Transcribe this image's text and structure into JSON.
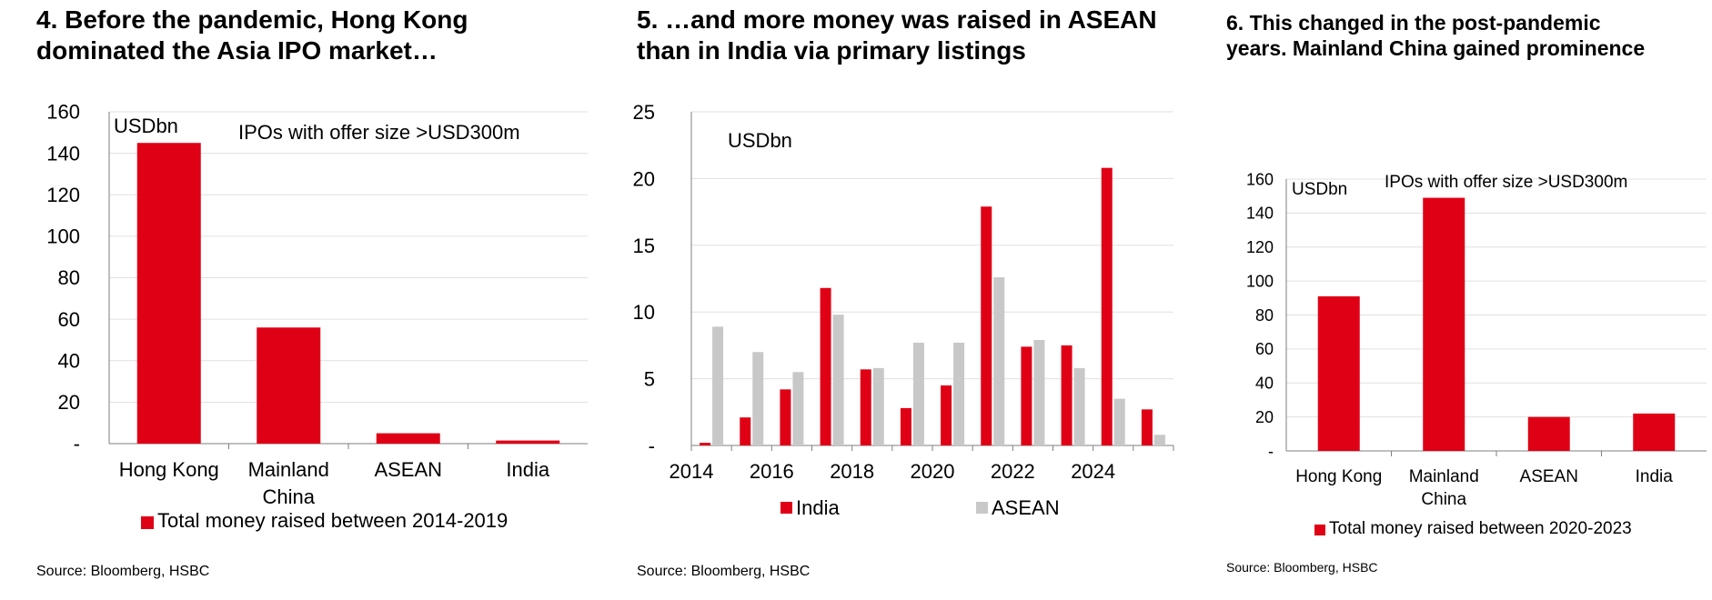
{
  "colors": {
    "red": "#e00016",
    "grey": "#c8c8c8",
    "grid": "#e0e0e0",
    "axis": "#7f7f7f"
  },
  "chart_data": [
    {
      "type": "bar",
      "title_line1": "4. Before the pandemic, Hong Kong",
      "title_line2": "dominated the Asia IPO market…",
      "unit_label": "USDbn",
      "annotation": "IPOs with offer size >USD300m",
      "categories": [
        "Hong Kong",
        "Mainland China",
        "ASEAN",
        "India"
      ],
      "series": [
        {
          "name": "Total money raised between 2014-2019",
          "values": [
            145,
            56,
            5,
            1.5
          ]
        }
      ],
      "yticks": [
        "-",
        "20",
        "40",
        "60",
        "80",
        "100",
        "120",
        "140",
        "160"
      ],
      "ylim": [
        0,
        160
      ],
      "grid": true,
      "legend": "bottom",
      "source": "Source: Bloomberg, HSBC"
    },
    {
      "type": "bar",
      "title_line1": "5. …and more money was raised in ASEAN",
      "title_line2": "than in India via primary listings",
      "unit_label": "USDbn",
      "x": [
        2014,
        2015,
        2016,
        2017,
        2018,
        2019,
        2020,
        2021,
        2022,
        2023,
        2024,
        2025
      ],
      "xticks": [
        "2014",
        "2016",
        "2018",
        "2020",
        "2022",
        "2024"
      ],
      "series": [
        {
          "name": "India",
          "values": [
            0.2,
            2.1,
            4.2,
            11.8,
            5.7,
            2.8,
            4.5,
            17.9,
            7.4,
            7.5,
            20.8,
            2.7
          ]
        },
        {
          "name": "ASEAN",
          "values": [
            8.9,
            7.0,
            5.5,
            9.8,
            5.8,
            7.7,
            7.7,
            12.6,
            7.9,
            5.8,
            3.5,
            0.8
          ]
        }
      ],
      "yticks": [
        "-",
        "5",
        "10",
        "15",
        "20",
        "25"
      ],
      "ylim": [
        0,
        25
      ],
      "grid": true,
      "legend": "bottom",
      "source": "Source: Bloomberg, HSBC"
    },
    {
      "type": "bar",
      "title_line1": "6. This changed in the post-pandemic",
      "title_line2": "years. Mainland China gained prominence",
      "unit_label": "USDbn",
      "annotation": "IPOs with offer size >USD300m",
      "categories": [
        "Hong Kong",
        "Mainland China",
        "ASEAN",
        "India"
      ],
      "series": [
        {
          "name": "Total money raised between 2020-2023",
          "values": [
            91,
            149,
            20,
            22
          ]
        }
      ],
      "yticks": [
        "-",
        "20",
        "40",
        "60",
        "80",
        "100",
        "120",
        "140",
        "160"
      ],
      "ylim": [
        0,
        160
      ],
      "grid": true,
      "legend": "bottom",
      "source": "Source: Bloomberg, HSBC"
    }
  ]
}
